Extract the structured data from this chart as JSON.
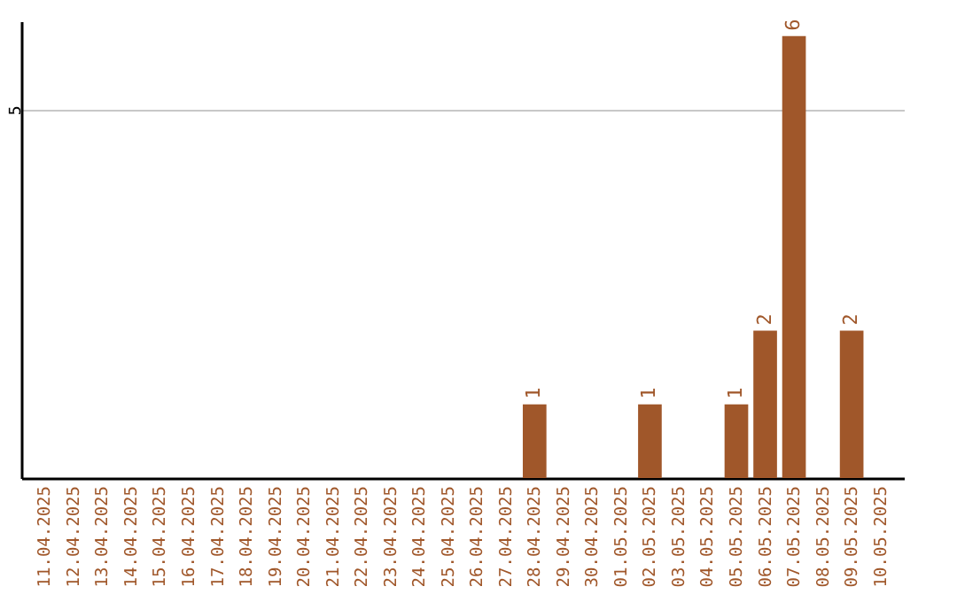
{
  "chart_data": {
    "type": "bar",
    "categories": [
      "11.04.2025",
      "12.04.2025",
      "13.04.2025",
      "14.04.2025",
      "15.04.2025",
      "16.04.2025",
      "17.04.2025",
      "18.04.2025",
      "19.04.2025",
      "20.04.2025",
      "21.04.2025",
      "22.04.2025",
      "23.04.2025",
      "24.04.2025",
      "25.04.2025",
      "26.04.2025",
      "27.04.2025",
      "28.04.2025",
      "29.04.2025",
      "30.04.2025",
      "01.05.2025",
      "02.05.2025",
      "03.05.2025",
      "04.05.2025",
      "05.05.2025",
      "06.05.2025",
      "07.05.2025",
      "08.05.2025",
      "09.05.2025",
      "10.05.2025"
    ],
    "values": [
      null,
      null,
      null,
      null,
      null,
      null,
      null,
      null,
      null,
      null,
      null,
      null,
      null,
      null,
      null,
      null,
      null,
      1,
      null,
      null,
      null,
      1,
      null,
      null,
      1,
      2,
      6,
      null,
      2,
      null
    ],
    "data_labels": true,
    "color": "#a0572a",
    "ylim": [
      0,
      6.2
    ],
    "yticks": [
      5
    ],
    "grid": "y"
  }
}
